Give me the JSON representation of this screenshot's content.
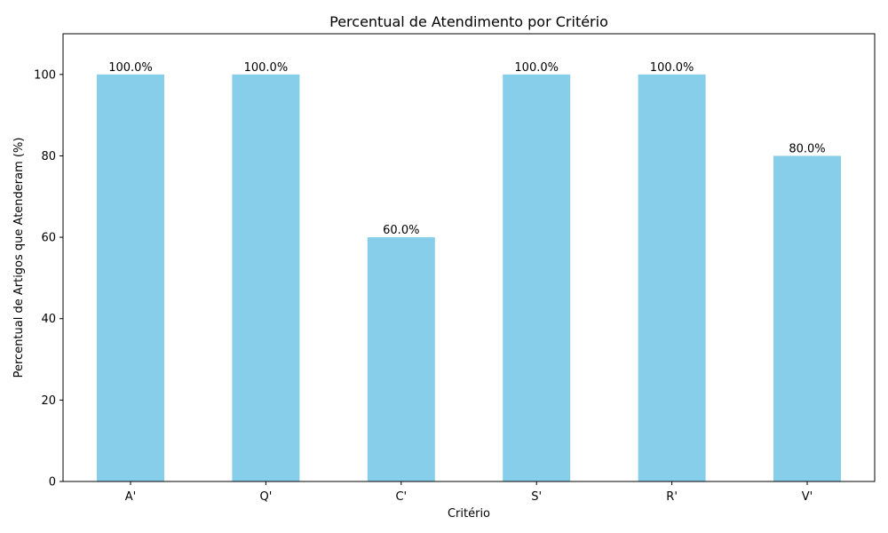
{
  "chart_data": {
    "type": "bar",
    "title": "Percentual de Atendimento por Critério",
    "xlabel": "Critério",
    "ylabel": "Percentual de Artigos que Atenderam (%)",
    "categories": [
      "A'",
      "Q'",
      "C'",
      "S'",
      "R'",
      "V'"
    ],
    "values": [
      100.0,
      100.0,
      60.0,
      100.0,
      100.0,
      80.0
    ],
    "value_labels": [
      "100.0%",
      "100.0%",
      "60.0%",
      "100.0%",
      "100.0%",
      "80.0%"
    ],
    "ylim": [
      0,
      110
    ],
    "yticks": [
      0,
      20,
      40,
      60,
      80,
      100
    ],
    "bar_color": "#87CEEB",
    "grid": false,
    "legend": "none"
  }
}
